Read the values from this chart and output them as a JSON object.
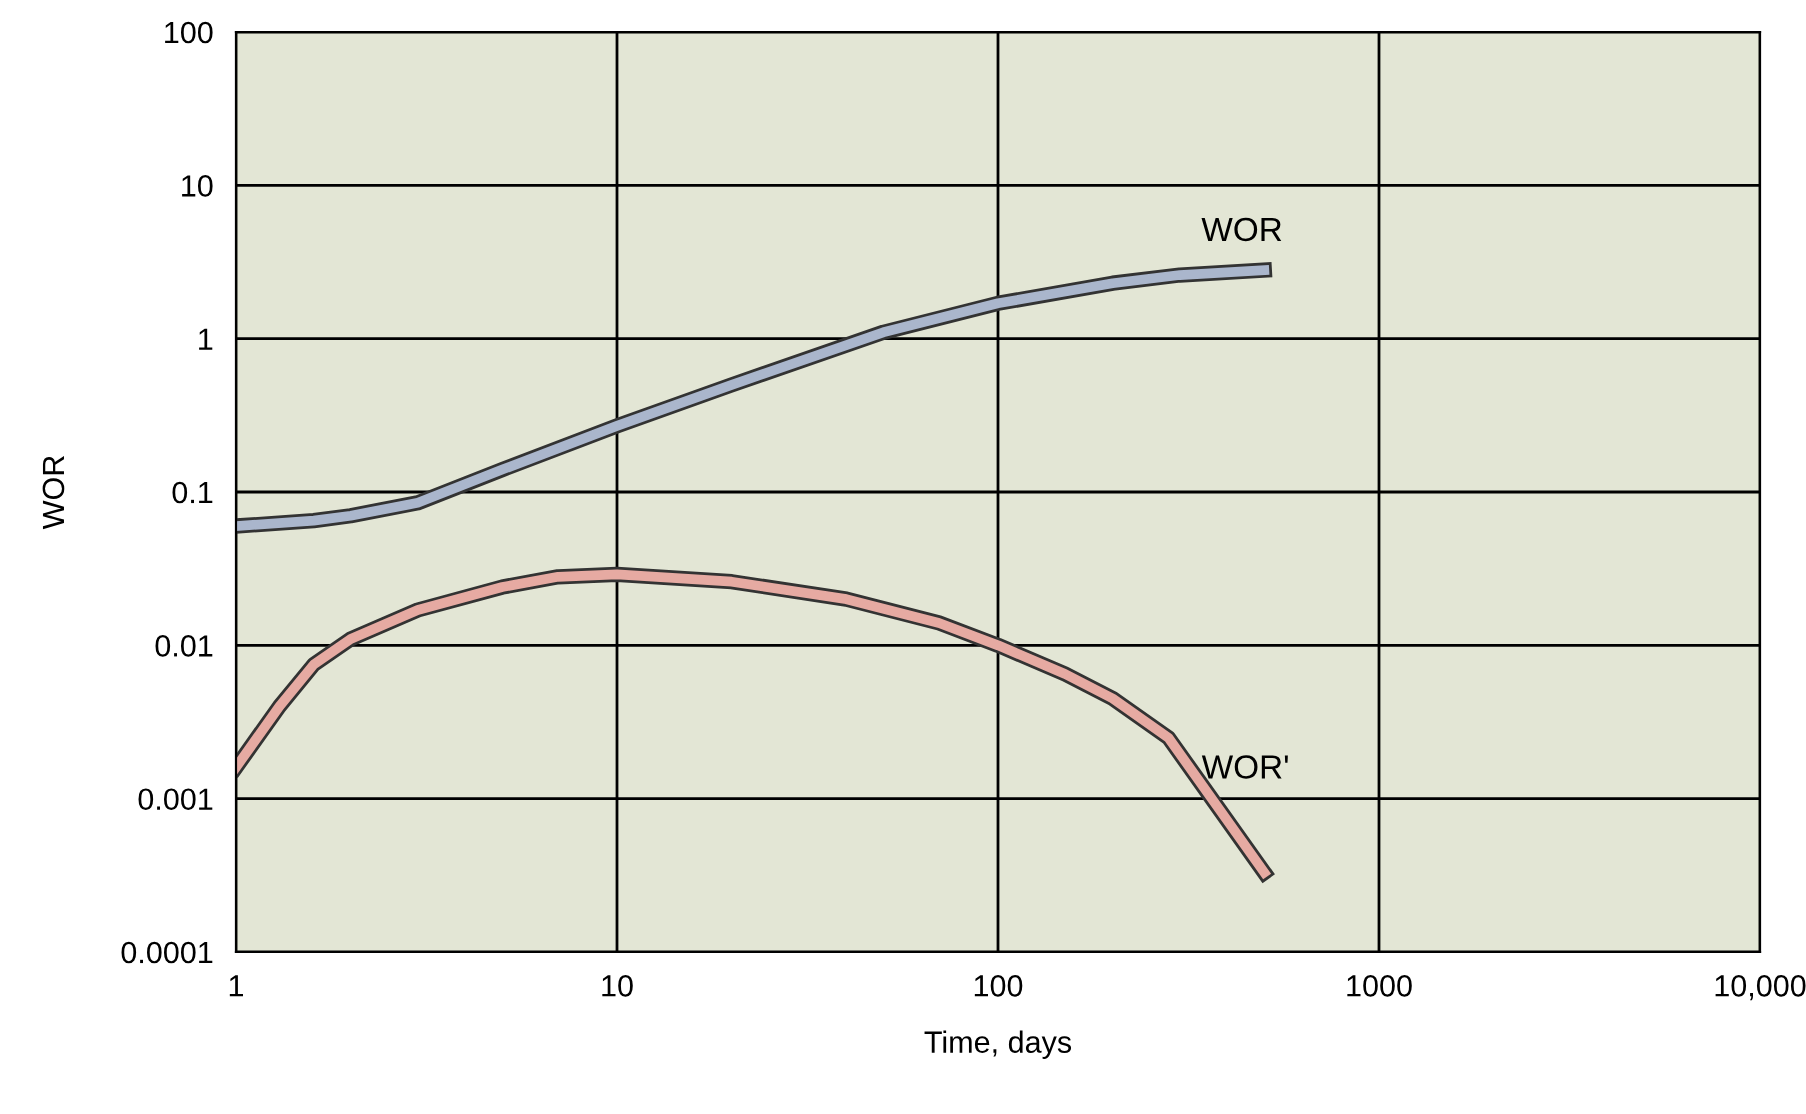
{
  "chart_data": {
    "type": "line",
    "xlabel": "Time, days",
    "ylabel": "WOR",
    "log": "xy",
    "grid": true,
    "legend": false,
    "xlim": [
      1,
      10000
    ],
    "xticks": [
      1,
      10,
      100,
      1000,
      {
        "value": 10000,
        "label": "10,000"
      }
    ],
    "ylim": [
      0.0001,
      100
    ],
    "yticks": [
      0.0001,
      0.001,
      0.01,
      0.1,
      1,
      10,
      100
    ],
    "series": [
      {
        "name": "WOR",
        "color": "#aab6cc",
        "x": [
          1,
          1.6,
          2,
          3,
          5,
          10,
          20,
          50,
          100,
          200,
          300,
          500
        ],
        "values": [
          0.06,
          0.065,
          0.07,
          0.085,
          0.14,
          0.27,
          0.5,
          1.1,
          1.7,
          2.3,
          2.6,
          2.8
        ]
      },
      {
        "name": "WOR'",
        "color": "#e6aaa2",
        "x": [
          1,
          1.3,
          1.6,
          2,
          3,
          5,
          7,
          10,
          20,
          40,
          70,
          100,
          150,
          200,
          280,
          500
        ],
        "values": [
          0.0016,
          0.004,
          0.0075,
          0.011,
          0.017,
          0.024,
          0.028,
          0.029,
          0.026,
          0.02,
          0.014,
          0.01,
          0.0065,
          0.0045,
          0.0025,
          0.00033
        ]
      }
    ]
  }
}
